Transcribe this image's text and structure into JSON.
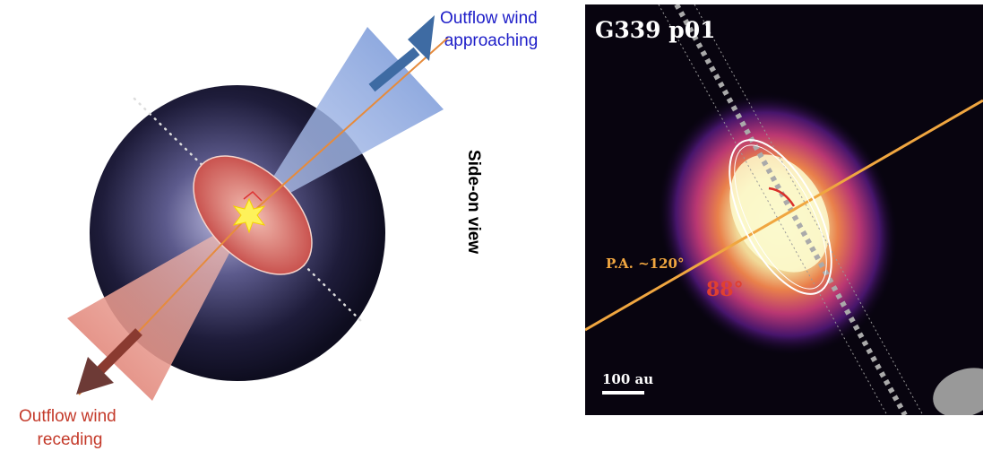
{
  "left_panel": {
    "approaching_label": [
      "Outflow wind",
      "approaching"
    ],
    "receding_label": [
      "Outflow wind",
      "receding"
    ],
    "view_label": "Side-on view"
  },
  "right_panel": {
    "title": "G339 p01",
    "position_angle_label": "P.A. ~120°",
    "angle_label": "88°",
    "scale_bar_label": "100 au"
  }
}
